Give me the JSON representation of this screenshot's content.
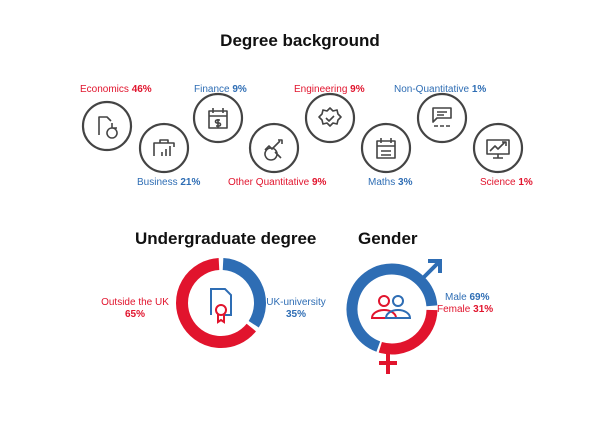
{
  "colors": {
    "red": "#e1142d",
    "blue": "#2e6db4",
    "icon": "#444444"
  },
  "degree_background": {
    "title": "Degree background",
    "items": [
      {
        "label": "Economics",
        "value": "46%",
        "color": "red",
        "icon": "document-pie-chart-icon"
      },
      {
        "label": "Business",
        "value": "21%",
        "color": "blue",
        "icon": "briefcase-bar-chart-icon"
      },
      {
        "label": "Finance",
        "value": "9%",
        "color": "blue",
        "icon": "calendar-dollar-icon"
      },
      {
        "label": "Other Quantitative",
        "value": "9%",
        "color": "red",
        "icon": "magnifier-trend-icon"
      },
      {
        "label": "Engineering",
        "value": "9%",
        "color": "red",
        "icon": "gear-check-icon"
      },
      {
        "label": "Maths",
        "value": "3%",
        "color": "blue",
        "icon": "calendar-grid-icon"
      },
      {
        "label": "Non-Quantitative",
        "value": "1%",
        "color": "blue",
        "icon": "presentation-audience-icon"
      },
      {
        "label": "Science",
        "value": "1%",
        "color": "red",
        "icon": "monitor-chart-icon"
      }
    ]
  },
  "undergraduate": {
    "title": "Undergraduate degree",
    "icon": "certificate-icon",
    "segments": [
      {
        "label": "UK-university",
        "value": "35%",
        "share": 35,
        "color": "blue"
      },
      {
        "label": "Outside the UK",
        "value": "65%",
        "share": 65,
        "color": "red"
      }
    ]
  },
  "gender": {
    "title": "Gender",
    "icon": "people-icon",
    "segments": [
      {
        "label": "Male",
        "value": "69%",
        "share": 69,
        "color": "blue",
        "icon": "male-symbol-icon"
      },
      {
        "label": "Female",
        "value": "31%",
        "share": 31,
        "color": "red",
        "icon": "female-symbol-icon"
      }
    ]
  }
}
